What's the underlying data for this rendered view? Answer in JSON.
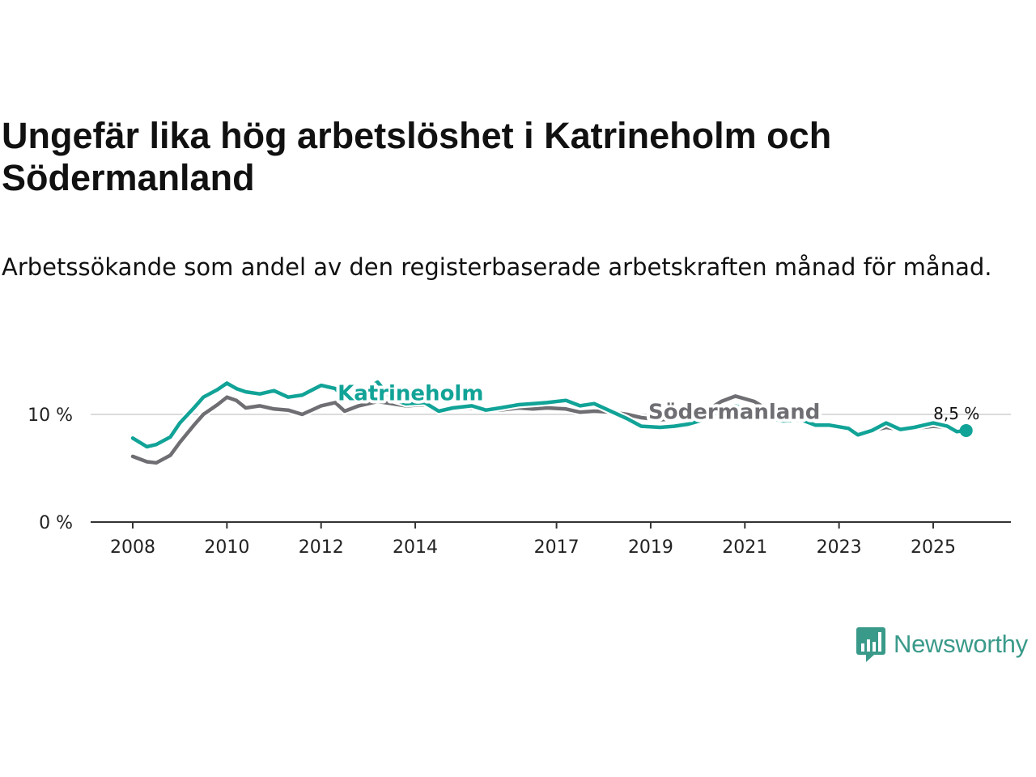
{
  "header": {
    "title": "Ungefär lika hög arbetslöshet i Katrineholm och Södermanland",
    "subtitle": "Arbetssökande som andel av den registerbaserade arbetskraften månad för månad."
  },
  "brand": {
    "name": "Newsworthy",
    "color": "#3a9a8a"
  },
  "chart_data": {
    "type": "line",
    "title": "Ungefär lika hög arbetslöshet i Katrineholm och Södermanland",
    "subtitle": "Arbetssökande som andel av den registerbaserade arbetskraften månad för månad.",
    "xlabel": "",
    "ylabel": "",
    "ylim": [
      0,
      14
    ],
    "xlim": [
      2007.5,
      2026.7
    ],
    "y_ticks": [
      0,
      10
    ],
    "y_tick_labels": [
      "0 %",
      "10 %"
    ],
    "x_ticks": [
      2008,
      2010,
      2012,
      2014,
      2017,
      2019,
      2021,
      2023,
      2025
    ],
    "x_tick_labels": [
      "2008",
      "2010",
      "2012",
      "2014",
      "2017",
      "2019",
      "2021",
      "2023",
      "2025"
    ],
    "grid": "horizontal at 10 %",
    "end_label": "8,5 %",
    "series": [
      {
        "name": "Södermanland",
        "color": "#6e6e73",
        "x": [
          2008.0,
          2008.3,
          2008.5,
          2008.8,
          2009.0,
          2009.3,
          2009.5,
          2009.8,
          2010.0,
          2010.2,
          2010.4,
          2010.7,
          2011.0,
          2011.3,
          2011.6,
          2012.0,
          2012.3,
          2012.5,
          2012.8,
          2013.2,
          2013.5,
          2013.8,
          2014.2,
          2014.5,
          2014.8,
          2015.2,
          2015.5,
          2015.8,
          2016.2,
          2016.5,
          2016.8,
          2017.2,
          2017.5,
          2017.8,
          2018.2,
          2018.5,
          2018.8,
          2019.2,
          2019.5,
          2019.8,
          2020.2,
          2020.5,
          2020.8,
          2021.2,
          2021.5,
          2021.8,
          2022.2,
          2022.5,
          2022.8,
          2023.2,
          2023.4,
          2023.7,
          2024.0,
          2024.3,
          2024.6,
          2025.0,
          2025.3,
          2025.5,
          2025.7
        ],
        "values": [
          6.1,
          5.6,
          5.5,
          6.2,
          7.4,
          9.0,
          10.0,
          10.9,
          11.6,
          11.3,
          10.6,
          10.8,
          10.5,
          10.4,
          10.0,
          10.8,
          11.1,
          10.3,
          10.8,
          11.2,
          11.0,
          10.8,
          10.9,
          10.4,
          10.5,
          10.6,
          10.5,
          10.4,
          10.6,
          10.5,
          10.6,
          10.5,
          10.2,
          10.3,
          10.2,
          10.0,
          9.7,
          9.5,
          9.6,
          9.9,
          10.4,
          11.2,
          11.7,
          11.2,
          10.4,
          9.9,
          9.5,
          9.2,
          9.1,
          8.7,
          8.3,
          8.5,
          8.8,
          8.6,
          8.7,
          8.9,
          8.8,
          8.6,
          8.5
        ]
      },
      {
        "name": "Katrineholm",
        "color": "#11a397",
        "x": [
          2008.0,
          2008.3,
          2008.5,
          2008.8,
          2009.0,
          2009.3,
          2009.5,
          2009.8,
          2010.0,
          2010.2,
          2010.4,
          2010.7,
          2011.0,
          2011.3,
          2011.6,
          2012.0,
          2012.3,
          2012.5,
          2012.8,
          2013.2,
          2013.5,
          2013.8,
          2014.2,
          2014.5,
          2014.8,
          2015.2,
          2015.5,
          2015.8,
          2016.2,
          2016.5,
          2016.8,
          2017.2,
          2017.5,
          2017.8,
          2018.2,
          2018.5,
          2018.8,
          2019.2,
          2019.5,
          2019.8,
          2020.2,
          2020.5,
          2020.8,
          2021.2,
          2021.5,
          2021.8,
          2022.2,
          2022.5,
          2022.8,
          2023.2,
          2023.4,
          2023.7,
          2024.0,
          2024.3,
          2024.6,
          2025.0,
          2025.3,
          2025.5,
          2025.7
        ],
        "values": [
          7.8,
          7.0,
          7.2,
          7.9,
          9.2,
          10.6,
          11.6,
          12.3,
          12.9,
          12.4,
          12.1,
          11.9,
          12.2,
          11.6,
          11.8,
          12.7,
          12.4,
          11.5,
          11.9,
          13.0,
          11.4,
          11.0,
          11.1,
          10.3,
          10.6,
          10.8,
          10.4,
          10.6,
          10.9,
          11.0,
          11.1,
          11.3,
          10.8,
          11.0,
          10.2,
          9.6,
          8.9,
          8.8,
          8.9,
          9.1,
          9.6,
          10.4,
          10.8,
          10.1,
          9.7,
          9.4,
          9.5,
          9.0,
          9.0,
          8.7,
          8.1,
          8.5,
          9.2,
          8.6,
          8.8,
          9.2,
          8.9,
          8.4,
          8.5
        ]
      }
    ]
  }
}
